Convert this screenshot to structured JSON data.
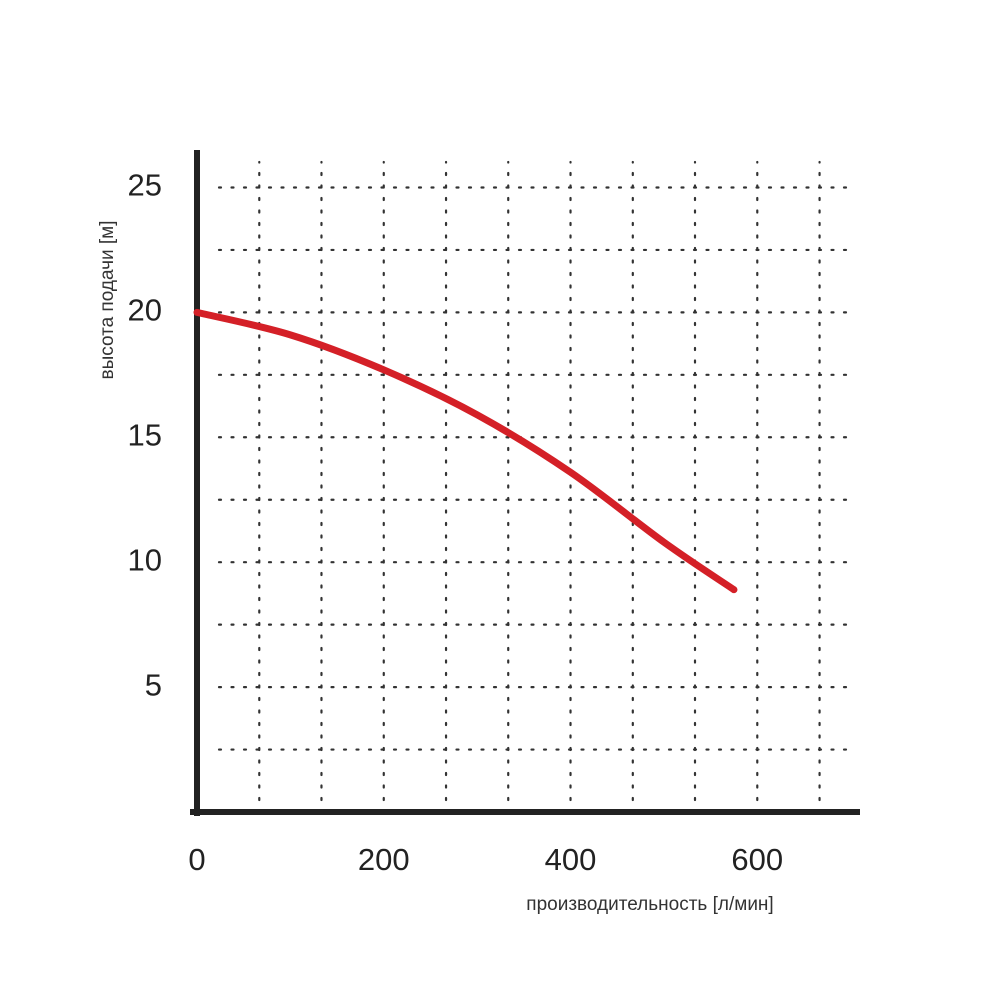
{
  "chart_data": {
    "type": "line",
    "xlabel": "производительность [л/мин]",
    "ylabel": "высота подачи [м]",
    "x": [
      0,
      100,
      200,
      300,
      400,
      500,
      575
    ],
    "values": [
      20,
      19.1,
      17.7,
      15.9,
      13.6,
      10.8,
      8.9
    ],
    "color": "#d42027",
    "xlim": [
      0,
      710
    ],
    "ylim": [
      0,
      26.5
    ],
    "xticks": [
      0,
      200,
      400,
      600
    ],
    "yticks": [
      5,
      10,
      15,
      20,
      25
    ],
    "xgrid": [
      66.7,
      133.3,
      200,
      266.7,
      333.3,
      400,
      466.7,
      533.3,
      600,
      666.7
    ],
    "ygrid": [
      2.5,
      5,
      7.5,
      10,
      12.5,
      15,
      17.5,
      20,
      22.5,
      25
    ],
    "grid": true
  }
}
